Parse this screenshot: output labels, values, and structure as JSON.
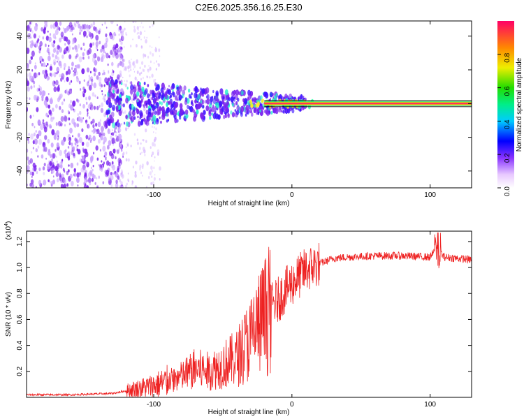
{
  "title": "C2E6.2025.356.16.25.E30",
  "colors": {
    "snr_line": "#ee2222",
    "trace_line": "#ee3333",
    "axis": "#000000"
  },
  "chart_data": [
    {
      "type": "heatmap",
      "name": "spectrogram",
      "xlabel": "Height of straight line (km)",
      "ylabel": "Frequency (Hz)",
      "xlim": [
        -192,
        130
      ],
      "ylim": [
        -50,
        49
      ],
      "x_ticks": [
        -100,
        0,
        100
      ],
      "x_tick_labels": [
        "-100",
        "0",
        "100"
      ],
      "y_ticks": [
        -40,
        -20,
        0,
        20,
        40
      ],
      "y_tick_labels": [
        "-40",
        "-20",
        "0",
        "20",
        "40"
      ],
      "colorbar": {
        "label": "Normalized spectral amplitude",
        "range": [
          0,
          1
        ],
        "ticks": [
          0,
          0.2,
          0.4,
          0.6,
          0.8
        ],
        "tick_labels": [
          "0.0",
          "0.2",
          "0.4",
          "0.6",
          "0.8"
        ]
      },
      "trace": {
        "frequency": 0,
        "x_start": -20,
        "x_end": 130
      }
    },
    {
      "type": "line",
      "name": "snr",
      "xlabel": "Height of straight line (km)",
      "ylabel": "SNR (10 * v/v)",
      "scale_label": "(x10",
      "scale_exponent": "4",
      "scale_suffix": ")",
      "xlim": [
        -192,
        130
      ],
      "ylim": [
        0,
        1.28
      ],
      "x_ticks": [
        -100,
        0,
        100
      ],
      "x_tick_labels": [
        "-100",
        "0",
        "100"
      ],
      "y_ticks": [
        0.2,
        0.4,
        0.6,
        0.8,
        1.0,
        1.2
      ],
      "y_tick_labels": [
        "0.2",
        "0.4",
        "0.6",
        "0.8",
        "1.0",
        "1.2"
      ],
      "series": [
        {
          "name": "SNR",
          "x": [
            -192,
            -160,
            -130,
            -120,
            -110,
            -100,
            -90,
            -80,
            -70,
            -60,
            -50,
            -40,
            -35,
            -30,
            -25,
            -20,
            -15,
            -10,
            -5,
            0,
            5,
            10,
            20,
            30,
            40,
            60,
            80,
            100,
            105,
            110,
            120,
            130
          ],
          "y": [
            0.02,
            0.02,
            0.03,
            0.05,
            0.07,
            0.09,
            0.12,
            0.16,
            0.22,
            0.2,
            0.25,
            0.3,
            0.38,
            0.45,
            0.55,
            0.62,
            0.7,
            0.75,
            0.82,
            0.88,
            0.93,
            0.98,
            1.03,
            1.07,
            1.08,
            1.09,
            1.09,
            1.08,
            1.15,
            1.08,
            1.07,
            1.06
          ]
        }
      ]
    }
  ]
}
